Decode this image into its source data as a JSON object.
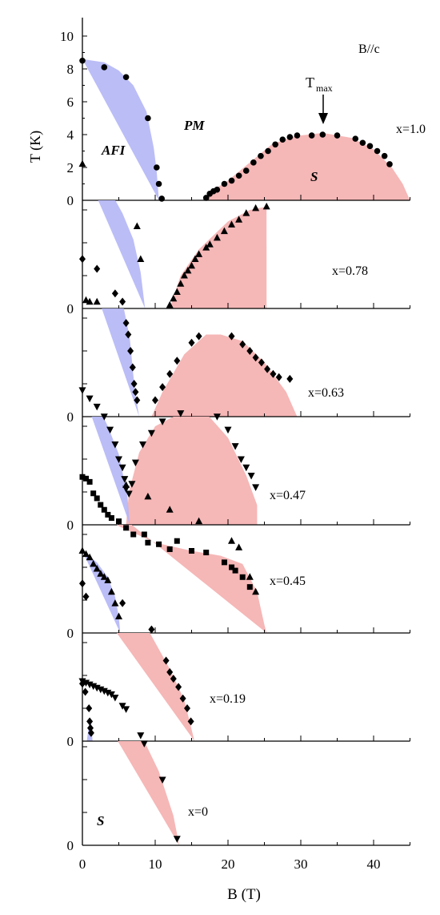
{
  "chart_data": {
    "type": "scatter",
    "xlabel": "B (T)",
    "ylabel": "T (K)",
    "field_direction": "B//c",
    "xlim": [
      0,
      45
    ],
    "xticks": [
      0,
      10,
      20,
      30,
      40
    ],
    "ylim": [
      0,
      10
    ],
    "yticks_top": [
      0,
      2,
      4,
      6,
      8,
      10
    ],
    "annotations": {
      "afi": "AFI",
      "pm": "PM",
      "s": "S",
      "tmax": "T",
      "tmax_sub": "max",
      "s_bottom": "S"
    },
    "colors": {
      "afi_fill": "#b4b6f6",
      "s_fill": "#f6b7b7",
      "marker": "#000000"
    },
    "panels": [
      {
        "label": "x=1.0",
        "marker": "circle",
        "afi_boundary": [
          [
            0,
            8.6
          ],
          [
            3,
            8.4
          ],
          [
            5,
            7.9
          ],
          [
            7,
            7.0
          ],
          [
            8.8,
            5.4
          ],
          [
            9.8,
            3.2
          ],
          [
            10.2,
            1.8
          ],
          [
            10.5,
            0
          ]
        ],
        "s_boundary": [
          [
            16.5,
            0
          ],
          [
            17.5,
            0.5
          ],
          [
            20,
            1.2
          ],
          [
            23,
            2.3
          ],
          [
            26,
            3.4
          ],
          [
            29,
            3.9
          ],
          [
            33,
            4.1
          ],
          [
            37,
            3.8
          ],
          [
            40,
            3.1
          ],
          [
            42.5,
            2.0
          ],
          [
            44,
            1.0
          ],
          [
            45,
            0
          ]
        ],
        "points": [
          [
            0,
            8.5
          ],
          [
            3,
            8.1
          ],
          [
            6,
            7.5
          ],
          [
            9,
            5.0
          ],
          [
            10.2,
            2.0
          ],
          [
            10.5,
            1.0
          ],
          [
            10.9,
            0.1
          ],
          [
            17,
            0.15
          ],
          [
            17.5,
            0.4
          ],
          [
            18,
            0.55
          ],
          [
            18.5,
            0.65
          ],
          [
            19.5,
            1.0
          ],
          [
            20.5,
            1.2
          ],
          [
            21.5,
            1.5
          ],
          [
            22.5,
            1.8
          ],
          [
            23.5,
            2.3
          ],
          [
            24.5,
            2.7
          ],
          [
            25.5,
            3.0
          ],
          [
            26.5,
            3.4
          ],
          [
            27.5,
            3.7
          ],
          [
            28.5,
            3.85
          ],
          [
            29.5,
            3.95
          ],
          [
            31.5,
            3.95
          ],
          [
            33,
            4.0
          ],
          [
            35,
            3.95
          ],
          [
            37.5,
            3.75
          ],
          [
            38.5,
            3.5
          ],
          [
            39.5,
            3.3
          ],
          [
            40.5,
            3.0
          ],
          [
            41.5,
            2.7
          ],
          [
            42.2,
            2.2
          ]
        ]
      },
      {
        "label": "x=0.78",
        "marker": "triangle-up",
        "afi_boundary": [
          [
            0,
            8.8
          ],
          [
            1.5,
            8.5
          ],
          [
            3.5,
            7.4
          ],
          [
            5.5,
            5.8
          ],
          [
            7,
            4.2
          ],
          [
            8,
            2.2
          ],
          [
            8.6,
            0
          ]
        ],
        "s_boundary": [
          [
            12,
            0
          ],
          [
            13.5,
            2.0
          ],
          [
            16,
            3.6
          ],
          [
            20,
            5.3
          ],
          [
            23,
            6.0
          ],
          [
            25.3,
            6.2
          ],
          [
            25.3,
            0
          ]
        ],
        "points": [
          [
            0,
            8.8
          ],
          [
            0.5,
            0.5
          ],
          [
            1,
            0.4
          ],
          [
            2,
            0.4
          ],
          [
            7.5,
            5.0
          ],
          [
            8,
            3.0
          ],
          [
            12,
            0.2
          ],
          [
            12.5,
            0.6
          ],
          [
            13,
            1.0
          ],
          [
            13.5,
            1.5
          ],
          [
            14,
            2.0
          ],
          [
            14.5,
            2.3
          ],
          [
            15,
            2.6
          ],
          [
            15.5,
            3.0
          ],
          [
            16,
            3.3
          ],
          [
            17,
            3.7
          ],
          [
            17.5,
            3.9
          ],
          [
            18.5,
            4.3
          ],
          [
            19.5,
            4.7
          ],
          [
            20.5,
            5.1
          ],
          [
            21.5,
            5.4
          ],
          [
            22.5,
            5.8
          ],
          [
            23.8,
            6.1
          ],
          [
            25.3,
            6.2
          ]
        ]
      },
      {
        "label": "x=0.63",
        "marker": "diamond",
        "afi_boundary": [
          [
            0,
            10
          ],
          [
            2,
            9.8
          ],
          [
            4,
            8.8
          ],
          [
            5.5,
            7.0
          ],
          [
            6.5,
            4.8
          ],
          [
            7,
            2.5
          ],
          [
            7.4,
            1.0
          ],
          [
            7.8,
            0
          ]
        ],
        "s_boundary": [
          [
            9.5,
            0
          ],
          [
            11,
            1.5
          ],
          [
            14,
            3.8
          ],
          [
            17,
            5.0
          ],
          [
            19,
            5.0
          ],
          [
            22,
            4.6
          ],
          [
            25,
            3.3
          ],
          [
            28,
            1.5
          ],
          [
            29.5,
            0
          ]
        ],
        "points": [
          [
            0,
            9.6
          ],
          [
            2,
            9.0
          ],
          [
            4.5,
            7.5
          ],
          [
            5.5,
            7.0
          ],
          [
            6,
            5.7
          ],
          [
            6.3,
            5.0
          ],
          [
            6.6,
            4.0
          ],
          [
            6.9,
            3.0
          ],
          [
            7.1,
            2.0
          ],
          [
            7.3,
            1.5
          ],
          [
            7.5,
            1.0
          ],
          [
            10,
            1.0
          ],
          [
            11,
            1.8
          ],
          [
            12,
            2.6
          ],
          [
            13,
            3.4
          ],
          [
            15,
            4.5
          ],
          [
            16,
            4.9
          ],
          [
            20.5,
            4.9
          ],
          [
            22,
            4.4
          ],
          [
            23,
            4.0
          ],
          [
            23.8,
            3.6
          ],
          [
            24.6,
            3.3
          ],
          [
            25.4,
            2.9
          ],
          [
            26.2,
            2.6
          ],
          [
            27,
            2.4
          ],
          [
            28.5,
            2.3
          ]
        ]
      },
      {
        "label": "x=0.47",
        "marker": "triangle-down",
        "afi_boundary": [
          [
            0,
            8.2
          ],
          [
            1.5,
            7.8
          ],
          [
            3.5,
            6.0
          ],
          [
            5,
            4.3
          ],
          [
            6.2,
            1.7
          ],
          [
            6.5,
            0
          ]
        ],
        "s_boundary": [
          [
            6,
            0
          ],
          [
            6.4,
            2.0
          ],
          [
            7.8,
            4.4
          ],
          [
            10,
            6.0
          ],
          [
            13,
            6.7
          ],
          [
            17,
            6.8
          ],
          [
            20,
            5.3
          ],
          [
            22.5,
            3.0
          ],
          [
            24,
            1.2
          ],
          [
            24,
            0
          ]
        ],
        "points": [
          [
            0,
            8.2
          ],
          [
            1,
            7.7
          ],
          [
            2,
            7.2
          ],
          [
            3,
            6.6
          ],
          [
            3.8,
            5.8
          ],
          [
            4.5,
            4.9
          ],
          [
            5,
            4.0
          ],
          [
            5.5,
            3.5
          ],
          [
            5.8,
            2.8
          ],
          [
            6,
            2.2
          ],
          [
            6.4,
            1.9
          ],
          [
            6.8,
            2.5
          ],
          [
            7.3,
            3.8
          ],
          [
            8.3,
            4.9
          ],
          [
            9.5,
            5.6
          ],
          [
            11,
            6.3
          ],
          [
            13.5,
            6.8
          ],
          [
            18.5,
            6.6
          ],
          [
            20,
            5.8
          ],
          [
            21,
            4.8
          ],
          [
            21.8,
            4.0
          ],
          [
            22.5,
            3.5
          ],
          [
            23.2,
            3.0
          ],
          [
            23.8,
            2.3
          ]
        ]
      },
      {
        "label": "x=0.45",
        "marker": "square+triangle-up",
        "afi_boundary": [
          [
            0,
            5.0
          ],
          [
            2,
            4.3
          ],
          [
            3.5,
            3.4
          ],
          [
            4.5,
            2.2
          ],
          [
            5,
            1.0
          ],
          [
            5.2,
            0
          ]
        ],
        "s_boundary": [
          [
            0,
            9.0
          ],
          [
            0,
            8.0
          ],
          [
            2,
            7.5
          ],
          [
            5,
            6.5
          ],
          [
            10,
            5.5
          ],
          [
            15,
            5.0
          ],
          [
            19,
            4.7
          ],
          [
            22,
            4.2
          ],
          [
            24,
            2.5
          ],
          [
            25,
            0.5
          ],
          [
            25.3,
            0
          ]
        ],
        "points": [
          [
            0,
            9.5
          ],
          [
            0.5,
            9.4
          ],
          [
            1,
            9.2
          ],
          [
            1.5,
            8.5
          ],
          [
            2,
            8.2
          ],
          [
            2.5,
            7.8
          ],
          [
            3,
            7.5
          ],
          [
            3.5,
            7.2
          ],
          [
            4,
            7.0
          ],
          [
            5,
            6.8
          ],
          [
            6,
            6.4
          ],
          [
            7,
            6.0
          ],
          [
            8.5,
            6.0
          ],
          [
            9,
            5.5
          ],
          [
            10.5,
            5.4
          ],
          [
            12,
            5.1
          ],
          [
            13,
            5.6
          ],
          [
            15,
            5.0
          ],
          [
            17,
            4.9
          ],
          [
            19.5,
            4.3
          ],
          [
            20.5,
            4.0
          ],
          [
            21,
            3.8
          ],
          [
            22,
            3.4
          ],
          [
            23,
            2.8
          ],
          [
            0,
            5.0
          ],
          [
            0.5,
            4.8
          ],
          [
            1,
            4.6
          ],
          [
            1.5,
            4.2
          ],
          [
            2,
            3.9
          ],
          [
            2.5,
            3.6
          ],
          [
            3,
            3.4
          ],
          [
            3.5,
            3.2
          ],
          [
            4,
            2.5
          ],
          [
            4.5,
            1.8
          ],
          [
            5,
            1.0
          ],
          [
            6,
            9.0
          ],
          [
            9,
            8.3
          ],
          [
            12,
            7.5
          ],
          [
            16,
            6.8
          ],
          [
            20.5,
            5.6
          ],
          [
            21.5,
            5.2
          ],
          [
            23,
            3.4
          ],
          [
            23.8,
            2.5
          ]
        ]
      },
      {
        "label": "x=0.19",
        "marker": "diamond",
        "afi_boundary": [
          [
            0.6,
            0
          ],
          [
            0.9,
            1.0
          ],
          [
            1.2,
            1.2
          ],
          [
            1.4,
            0
          ]
        ],
        "s_boundary": [
          [
            0,
            9.5
          ],
          [
            3,
            8.8
          ],
          [
            6,
            8.2
          ],
          [
            9,
            6.8
          ],
          [
            12,
            4.4
          ],
          [
            14,
            2.5
          ],
          [
            15.4,
            0
          ]
        ],
        "points": [
          [
            0,
            9.6
          ],
          [
            0.5,
            8.8
          ],
          [
            5.5,
            8.4
          ],
          [
            9.5,
            6.8
          ],
          [
            11.5,
            4.9
          ],
          [
            12,
            4.2
          ],
          [
            12.5,
            3.8
          ],
          [
            13.2,
            3.3
          ],
          [
            13.8,
            2.6
          ],
          [
            14.4,
            2.0
          ],
          [
            14.9,
            1.2
          ],
          [
            0,
            3.5
          ],
          [
            0.4,
            3.0
          ],
          [
            0.9,
            2.0
          ],
          [
            1,
            1.2
          ],
          [
            1.1,
            0.8
          ],
          [
            1.2,
            0.5
          ]
        ]
      },
      {
        "label": "x=0",
        "marker": "triangle-down",
        "s_boundary": [
          [
            0,
            10
          ],
          [
            3,
            9.6
          ],
          [
            5.5,
            8.5
          ],
          [
            8,
            6.8
          ],
          [
            10.5,
            4.5
          ],
          [
            12.5,
            1.8
          ],
          [
            13.3,
            0
          ]
        ],
        "points": [
          [
            0,
            10.0
          ],
          [
            0.5,
            9.9
          ],
          [
            1,
            9.8
          ],
          [
            1.5,
            9.7
          ],
          [
            2,
            9.6
          ],
          [
            2.5,
            9.5
          ],
          [
            3,
            9.4
          ],
          [
            3.5,
            9.3
          ],
          [
            4,
            9.2
          ],
          [
            4.5,
            9.0
          ],
          [
            5.5,
            8.5
          ],
          [
            6,
            8.3
          ],
          [
            8,
            6.7
          ],
          [
            8.5,
            6.2
          ],
          [
            11,
            4.0
          ],
          [
            13,
            0.4
          ]
        ]
      }
    ]
  }
}
